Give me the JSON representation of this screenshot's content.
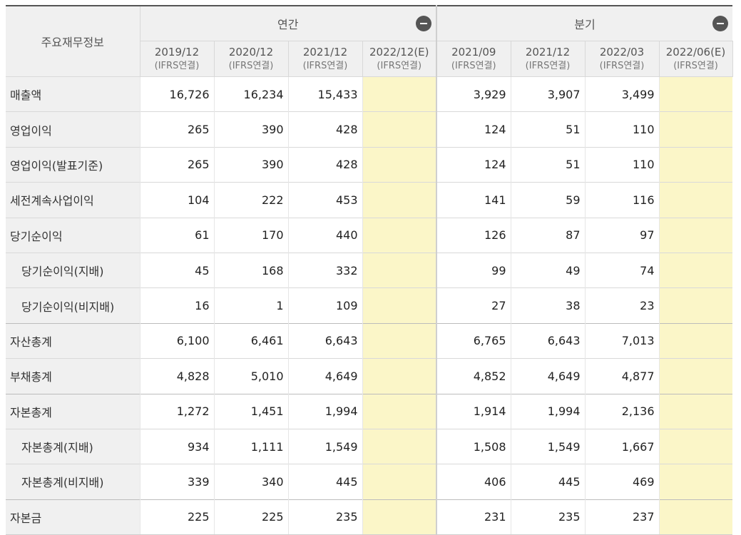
{
  "header": {
    "label_title": "주요재무정보",
    "annual_title": "연간",
    "quarter_title": "분기",
    "columns": [
      {
        "period": "2019/12",
        "basis": "(IFRS연결)"
      },
      {
        "period": "2020/12",
        "basis": "(IFRS연결)"
      },
      {
        "period": "2021/12",
        "basis": "(IFRS연결)"
      },
      {
        "period": "2022/12(E)",
        "basis": "(IFRS연결)"
      },
      {
        "period": "2021/09",
        "basis": "(IFRS연결)"
      },
      {
        "period": "2021/12",
        "basis": "(IFRS연결)"
      },
      {
        "period": "2022/03",
        "basis": "(IFRS연결)"
      },
      {
        "period": "2022/06(E)",
        "basis": "(IFRS연결)"
      }
    ]
  },
  "rows": [
    {
      "label": "매출액",
      "values": [
        "16,726",
        "16,234",
        "15,433",
        "",
        "3,929",
        "3,907",
        "3,499",
        ""
      ]
    },
    {
      "label": "영업이익",
      "values": [
        "265",
        "390",
        "428",
        "",
        "124",
        "51",
        "110",
        ""
      ]
    },
    {
      "label": "영업이익(발표기준)",
      "values": [
        "265",
        "390",
        "428",
        "",
        "124",
        "51",
        "110",
        ""
      ]
    },
    {
      "label": "세전계속사업이익",
      "values": [
        "104",
        "222",
        "453",
        "",
        "141",
        "59",
        "116",
        ""
      ]
    },
    {
      "label": "당기순이익",
      "values": [
        "61",
        "170",
        "440",
        "",
        "126",
        "87",
        "97",
        ""
      ]
    },
    {
      "label": "당기순이익(지배)",
      "values": [
        "45",
        "168",
        "332",
        "",
        "99",
        "49",
        "74",
        ""
      ]
    },
    {
      "label": "당기순이익(비지배)",
      "values": [
        "16",
        "1",
        "109",
        "",
        "27",
        "38",
        "23",
        ""
      ]
    },
    {
      "label": "자산총계",
      "values": [
        "6,100",
        "6,461",
        "6,643",
        "",
        "6,765",
        "6,643",
        "7,013",
        ""
      ]
    },
    {
      "label": "부채총계",
      "values": [
        "4,828",
        "5,010",
        "4,649",
        "",
        "4,852",
        "4,649",
        "4,877",
        ""
      ]
    },
    {
      "label": "자본총계",
      "values": [
        "1,272",
        "1,451",
        "1,994",
        "",
        "1,914",
        "1,994",
        "2,136",
        ""
      ]
    },
    {
      "label": "자본총계(지배)",
      "values": [
        "934",
        "1,111",
        "1,549",
        "",
        "1,508",
        "1,549",
        "1,667",
        ""
      ]
    },
    {
      "label": "자본총계(비지배)",
      "values": [
        "339",
        "340",
        "445",
        "",
        "406",
        "445",
        "469",
        ""
      ]
    },
    {
      "label": "자본금",
      "values": [
        "225",
        "225",
        "235",
        "",
        "231",
        "235",
        "237",
        ""
      ]
    }
  ],
  "colors": {
    "header_bg": "#f0f0f0",
    "estimate_bg": "#fbf6c8",
    "toggle": "#555555"
  },
  "icons": {
    "annual_toggle": "minus-circle-icon",
    "quarter_toggle": "minus-circle-icon"
  }
}
